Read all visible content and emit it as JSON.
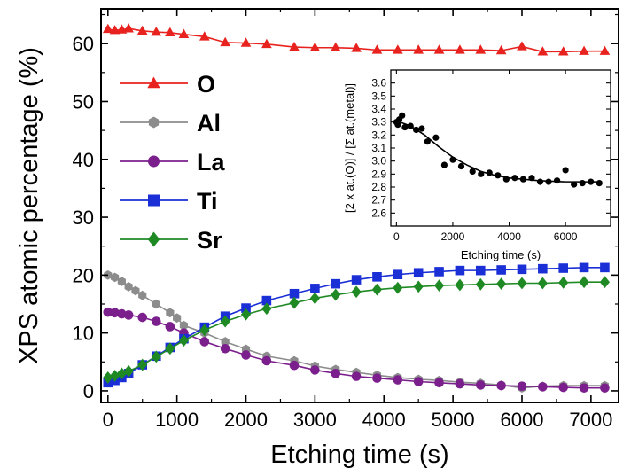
{
  "chart_data": [
    {
      "type": "line",
      "xlabel": "Etching time (s)",
      "ylabel": "XPS atomic percentage (%)",
      "xlim": [
        -100,
        7400
      ],
      "ylim": [
        -2,
        66
      ],
      "xticks": [
        0,
        1000,
        2000,
        3000,
        4000,
        5000,
        6000,
        7000
      ],
      "yticks": [
        0,
        10,
        20,
        30,
        40,
        50,
        60
      ],
      "legend_position": "left",
      "series": [
        {
          "name": "O",
          "color": "#e8231f",
          "marker": "triangle",
          "x": [
            0,
            100,
            200,
            300,
            500,
            700,
            900,
            1100,
            1400,
            1700,
            2000,
            2300,
            2700,
            3000,
            3300,
            3600,
            3900,
            4200,
            4500,
            4800,
            5100,
            5400,
            5700,
            6000,
            6300,
            6600,
            6900,
            7200
          ],
          "y": [
            62.5,
            62.3,
            62.4,
            62.6,
            62.2,
            62.0,
            61.9,
            61.6,
            61.2,
            60.2,
            60.1,
            59.9,
            59.4,
            59.3,
            59.3,
            59.2,
            58.9,
            58.9,
            58.9,
            58.9,
            58.9,
            58.9,
            58.8,
            59.5,
            58.6,
            58.6,
            58.7,
            58.7
          ]
        },
        {
          "name": "Al",
          "color": "#8c8c8c",
          "marker": "hexagon",
          "x": [
            0,
            100,
            200,
            300,
            400,
            500,
            700,
            900,
            1000,
            1100,
            1400,
            1700,
            2000,
            2300,
            2700,
            3000,
            3300,
            3600,
            3900,
            4200,
            4500,
            4800,
            5100,
            5400,
            5700,
            6000,
            6300,
            6600,
            6900,
            7200
          ],
          "y": [
            20.0,
            19.6,
            18.9,
            18.0,
            17.3,
            16.5,
            15.0,
            13.5,
            12.6,
            11.3,
            10.0,
            8.5,
            7.2,
            6.0,
            5.2,
            4.3,
            3.7,
            3.2,
            2.7,
            2.3,
            2.0,
            1.8,
            1.5,
            1.3,
            1.0,
            0.5,
            0.8,
            0.9,
            0.9,
            0.9
          ]
        },
        {
          "name": "La",
          "color": "#7b1f8c",
          "marker": "circle",
          "x": [
            0,
            100,
            200,
            300,
            500,
            700,
            900,
            1100,
            1400,
            1700,
            2000,
            2300,
            2700,
            3000,
            3300,
            3600,
            3900,
            4200,
            4500,
            4800,
            5100,
            5400,
            5700,
            6000,
            6300,
            6600,
            6900,
            7200
          ],
          "y": [
            13.6,
            13.5,
            13.3,
            13.1,
            12.7,
            12.0,
            11.1,
            10.0,
            8.5,
            7.3,
            6.2,
            5.2,
            4.4,
            3.6,
            3.0,
            2.5,
            2.2,
            1.9,
            1.6,
            1.4,
            1.2,
            1.0,
            0.9,
            0.8,
            0.7,
            0.6,
            0.5,
            0.5
          ]
        },
        {
          "name": "Ti",
          "color": "#1a2fd6",
          "marker": "square",
          "x": [
            0,
            100,
            200,
            300,
            500,
            700,
            900,
            1100,
            1400,
            1700,
            2000,
            2300,
            2700,
            3000,
            3300,
            3600,
            3900,
            4200,
            4500,
            4800,
            5100,
            5400,
            5700,
            6000,
            6300,
            6600,
            6900,
            7200
          ],
          "y": [
            1.4,
            1.8,
            2.3,
            3.0,
            4.5,
            6.0,
            7.5,
            9.0,
            11.0,
            12.9,
            14.3,
            15.6,
            16.8,
            17.7,
            18.5,
            19.2,
            19.7,
            20.1,
            20.4,
            20.6,
            20.8,
            20.8,
            20.9,
            21.0,
            21.1,
            21.2,
            21.3,
            21.3
          ]
        },
        {
          "name": "Sr",
          "color": "#1f8a24",
          "marker": "diamond",
          "x": [
            0,
            100,
            200,
            300,
            500,
            700,
            900,
            1100,
            1400,
            1700,
            2000,
            2300,
            2700,
            3000,
            3300,
            3600,
            3900,
            4200,
            4500,
            4800,
            5100,
            5400,
            5700,
            6000,
            6300,
            6600,
            6900,
            7200
          ],
          "y": [
            2.3,
            2.6,
            3.0,
            3.4,
            4.5,
            5.9,
            7.3,
            8.7,
            10.5,
            12.0,
            13.2,
            14.2,
            15.2,
            16.0,
            16.6,
            17.1,
            17.5,
            17.8,
            18.0,
            18.2,
            18.3,
            18.4,
            18.5,
            18.6,
            18.6,
            18.7,
            18.8,
            18.8
          ]
        }
      ]
    },
    {
      "type": "scatter",
      "xlabel": "Etching time (s)",
      "ylabel": "[2 x at.(O)] / [Σ at.(metal)]",
      "xlim": [
        -200,
        7600
      ],
      "ylim": [
        2.5,
        3.7
      ],
      "xticks": [
        0,
        2000,
        4000,
        6000
      ],
      "yticks": [
        2.6,
        2.7,
        2.8,
        2.9,
        3.0,
        3.1,
        3.2,
        3.3,
        3.4,
        3.5,
        3.6
      ],
      "series": [
        {
          "name": "",
          "color": "#000000",
          "marker": "circle",
          "x": [
            0,
            50,
            100,
            200,
            300,
            500,
            700,
            900,
            1100,
            1400,
            1700,
            2000,
            2300,
            2700,
            3000,
            3300,
            3600,
            3900,
            4200,
            4500,
            4800,
            5100,
            5400,
            5700,
            6000,
            6300,
            6600,
            6900,
            7200
          ],
          "y": [
            3.3,
            3.28,
            3.32,
            3.35,
            3.26,
            3.27,
            3.24,
            3.25,
            3.15,
            3.18,
            2.97,
            3.01,
            2.96,
            2.92,
            2.9,
            2.91,
            2.89,
            2.86,
            2.87,
            2.86,
            2.87,
            2.84,
            2.84,
            2.85,
            2.93,
            2.82,
            2.83,
            2.84,
            2.83
          ]
        }
      ],
      "fit": {
        "x": [
          0,
          500,
          1000,
          1500,
          2000,
          2500,
          3000,
          3500,
          4000,
          4500,
          5000,
          5500,
          6000,
          6500,
          7000,
          7300
        ],
        "y": [
          3.31,
          3.27,
          3.2,
          3.11,
          3.03,
          2.97,
          2.92,
          2.89,
          2.87,
          2.86,
          2.85,
          2.845,
          2.84,
          2.84,
          2.84,
          2.84
        ]
      }
    }
  ]
}
